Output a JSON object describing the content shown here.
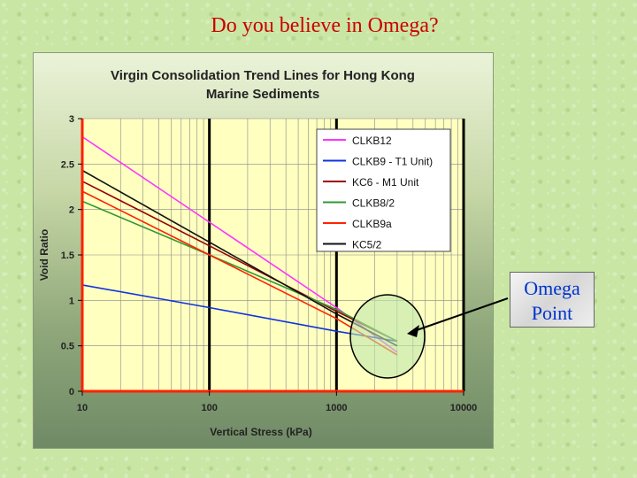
{
  "slide": {
    "title": "Do you believe in Omega?",
    "callout_line1": "Omega",
    "callout_line2": "Point"
  },
  "colors": {
    "plot_area": "#ffffc0",
    "axis": "#ff2200",
    "major_grid": "#000000",
    "minor_grid": "#888888",
    "title_color": "#cc0000",
    "callout_text": "#0033cc"
  },
  "chart_data": {
    "type": "line",
    "title_line1": "Virgin Consolidation Trend Lines for Hong Kong",
    "title_line2": "Marine Sediments",
    "xlabel": "Vertical Stress (kPa)",
    "ylabel": "Void Ratio",
    "x_scale": "log",
    "xlim": [
      10,
      10000
    ],
    "ylim": [
      0,
      3
    ],
    "x_ticks": [
      "10",
      "100",
      "1000",
      "10000"
    ],
    "y_ticks": [
      "0",
      "0.5",
      "1",
      "1.5",
      "2",
      "2.5",
      "3"
    ],
    "grid": true,
    "legend_position": "top-right",
    "series": [
      {
        "name": "CLKB12",
        "color": "#ff33ff",
        "points": [
          [
            10,
            2.8
          ],
          [
            100,
            1.86
          ],
          [
            1000,
            0.92
          ],
          [
            3000,
            0.43
          ]
        ]
      },
      {
        "name": "CLKB9 - T1 Unit)",
        "color": "#1133dd",
        "points": [
          [
            10,
            1.17
          ],
          [
            100,
            0.92
          ],
          [
            1000,
            0.66
          ],
          [
            3000,
            0.55
          ]
        ]
      },
      {
        "name": "KC6 - M1 Unit",
        "color": "#990000",
        "points": [
          [
            10,
            2.31
          ],
          [
            100,
            1.6
          ],
          [
            1000,
            0.88
          ],
          [
            3000,
            0.55
          ]
        ]
      },
      {
        "name": "CLKB8/2",
        "color": "#339933",
        "points": [
          [
            10,
            2.09
          ],
          [
            100,
            1.5
          ],
          [
            1000,
            0.9
          ],
          [
            3000,
            0.55
          ]
        ]
      },
      {
        "name": "CLKB9a",
        "color": "#ff2200",
        "points": [
          [
            10,
            2.2
          ],
          [
            100,
            1.5
          ],
          [
            1000,
            0.8
          ],
          [
            3000,
            0.4
          ]
        ]
      },
      {
        "name": "KC5/2",
        "color": "#111111",
        "points": [
          [
            10,
            2.43
          ],
          [
            100,
            1.64
          ],
          [
            1000,
            0.85
          ],
          [
            3000,
            0.5
          ]
        ]
      }
    ]
  }
}
